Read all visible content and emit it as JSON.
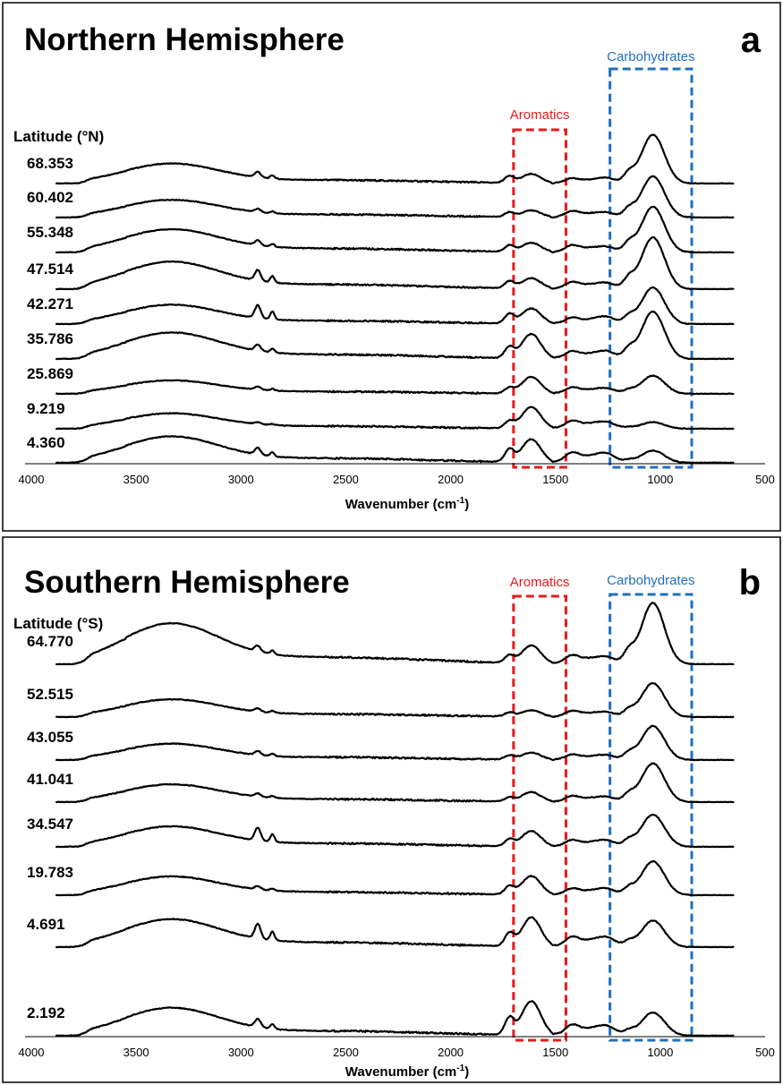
{
  "chart_data": [
    {
      "type": "line",
      "panel": "a",
      "title": "Northern Hemisphere",
      "latitude_header": "Latitude (°N)",
      "xlabel": "Wavenumber (cm",
      "xlabel_sup": "-1",
      "xlabel_close": ")",
      "xlim": [
        4000,
        500
      ],
      "x_reversed": true,
      "xticks": [
        4000,
        3500,
        3000,
        2500,
        2000,
        1500,
        1000,
        500
      ],
      "grid": false,
      "regions": [
        {
          "name": "Aromatics",
          "x_range": [
            1700,
            1450
          ],
          "color": "#e8191c"
        },
        {
          "name": "Carbohydrates",
          "x_range": [
            1240,
            850
          ],
          "color": "#1f6fbf"
        }
      ],
      "series": [
        {
          "name": "68.353",
          "peaks": {
            "oh": 0.62,
            "ch": 0.18,
            "c1720": 0.22,
            "c1620": 0.3,
            "c1510": 0.1,
            "c1420": 0.16,
            "c1260": 0.18,
            "carb": 1.6
          }
        },
        {
          "name": "60.402",
          "peaks": {
            "oh": 0.55,
            "ch": 0.1,
            "c1720": 0.15,
            "c1620": 0.22,
            "c1510": 0.08,
            "c1420": 0.2,
            "c1260": 0.16,
            "carb": 1.35
          }
        },
        {
          "name": "55.348",
          "peaks": {
            "oh": 0.72,
            "ch": 0.16,
            "c1720": 0.2,
            "c1620": 0.3,
            "c1510": 0.1,
            "c1420": 0.22,
            "c1260": 0.18,
            "carb": 1.5
          }
        },
        {
          "name": "47.514",
          "peaks": {
            "oh": 0.85,
            "ch": 0.35,
            "c1720": 0.22,
            "c1620": 0.34,
            "c1510": 0.08,
            "c1420": 0.22,
            "c1260": 0.2,
            "carb": 1.7
          }
        },
        {
          "name": "42.271",
          "peaks": {
            "oh": 0.6,
            "ch": 0.42,
            "c1720": 0.3,
            "c1620": 0.5,
            "c1510": 0.05,
            "c1420": 0.2,
            "c1260": 0.24,
            "carb": 1.2
          }
        },
        {
          "name": "35.786",
          "peaks": {
            "oh": 0.82,
            "ch": 0.2,
            "c1720": 0.35,
            "c1620": 0.8,
            "c1510": 0.05,
            "c1420": 0.24,
            "c1260": 0.25,
            "carb": 1.55
          }
        },
        {
          "name": "25.869",
          "peaks": {
            "oh": 0.42,
            "ch": 0.1,
            "c1720": 0.18,
            "c1620": 0.55,
            "c1510": 0.05,
            "c1420": 0.2,
            "c1260": 0.18,
            "carb": 0.6
          }
        },
        {
          "name": "9.219",
          "peaks": {
            "oh": 0.48,
            "ch": 0.06,
            "c1720": 0.22,
            "c1620": 0.7,
            "c1510": 0.04,
            "c1420": 0.25,
            "c1260": 0.22,
            "carb": 0.22
          }
        },
        {
          "name": "4.360",
          "peaks": {
            "oh": 0.82,
            "ch": 0.22,
            "c1720": 0.4,
            "c1620": 0.75,
            "c1510": 0.1,
            "c1420": 0.32,
            "c1260": 0.3,
            "carb": 0.4
          }
        }
      ]
    },
    {
      "type": "line",
      "panel": "b",
      "title": "Southern Hemisphere",
      "latitude_header": "Latitude (°S)",
      "xlabel": "Wavenumber (cm",
      "xlabel_sup": "-1",
      "xlabel_close": ")",
      "xlim": [
        4000,
        500
      ],
      "x_reversed": true,
      "xticks": [
        4000,
        3500,
        3000,
        2500,
        2000,
        1500,
        1000,
        500
      ],
      "grid": false,
      "regions": [
        {
          "name": "Aromatics",
          "x_range": [
            1700,
            1450
          ],
          "color": "#e8191c"
        },
        {
          "name": "Carbohydrates",
          "x_range": [
            1240,
            850
          ],
          "color": "#1f6fbf"
        }
      ],
      "series": [
        {
          "name": "64.770",
          "peaks": {
            "oh": 1.2,
            "ch": 0.18,
            "c1720": 0.22,
            "c1620": 0.55,
            "c1510": 0.06,
            "c1420": 0.26,
            "c1260": 0.22,
            "carb": 1.9
          }
        },
        {
          "name": "52.515",
          "peaks": {
            "oh": 0.52,
            "ch": 0.1,
            "c1720": 0.12,
            "c1620": 0.2,
            "c1510": 0.06,
            "c1420": 0.18,
            "c1260": 0.15,
            "carb": 1.05
          }
        },
        {
          "name": "43.055",
          "peaks": {
            "oh": 0.48,
            "ch": 0.12,
            "c1720": 0.12,
            "c1620": 0.22,
            "c1510": 0.06,
            "c1420": 0.16,
            "c1260": 0.15,
            "carb": 1.05
          }
        },
        {
          "name": "41.041",
          "peaks": {
            "oh": 0.52,
            "ch": 0.1,
            "c1720": 0.12,
            "c1620": 0.3,
            "c1510": 0.05,
            "c1420": 0.18,
            "c1260": 0.16,
            "carb": 1.2
          }
        },
        {
          "name": "34.547",
          "peaks": {
            "oh": 0.6,
            "ch": 0.4,
            "c1720": 0.2,
            "c1620": 0.48,
            "c1510": 0.05,
            "c1420": 0.2,
            "c1260": 0.2,
            "carb": 1.0
          }
        },
        {
          "name": "19.783",
          "peaks": {
            "oh": 0.55,
            "ch": 0.1,
            "c1720": 0.25,
            "c1620": 0.58,
            "c1510": 0.05,
            "c1420": 0.2,
            "c1260": 0.2,
            "carb": 1.05
          }
        },
        {
          "name": "4.691",
          "peaks": {
            "oh": 0.82,
            "ch": 0.45,
            "c1720": 0.38,
            "c1620": 0.9,
            "c1510": 0.08,
            "c1420": 0.3,
            "c1260": 0.3,
            "carb": 0.82
          }
        },
        {
          "name": "2.192",
          "peaks": {
            "oh": 0.82,
            "ch": 0.25,
            "c1720": 0.5,
            "c1620": 1.05,
            "c1510": 0.1,
            "c1420": 0.32,
            "c1260": 0.3,
            "carb": 0.72
          }
        }
      ]
    }
  ]
}
